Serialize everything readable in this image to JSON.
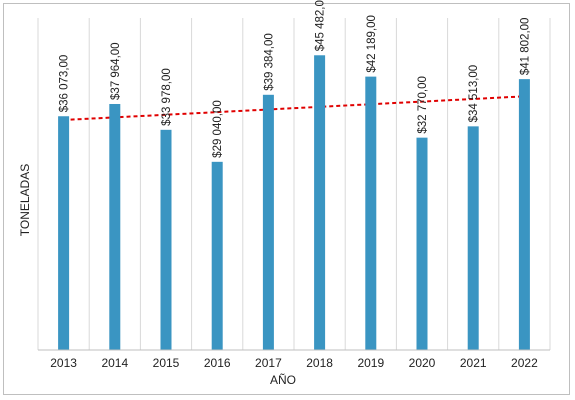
{
  "chart_data": {
    "type": "bar",
    "categories": [
      "2013",
      "2014",
      "2015",
      "2016",
      "2017",
      "2018",
      "2019",
      "2020",
      "2021",
      "2022"
    ],
    "values": [
      36073,
      37964,
      33978,
      29040,
      39384,
      45482,
      42189,
      32770,
      34513,
      41802
    ],
    "data_labels": [
      "$36 073,00",
      "$37 964,00",
      "$33 978,00",
      "$29 040,00",
      "$39 384,00",
      "$45 482,00",
      "$42 189,00",
      "$32 770,00",
      "$34 513,00",
      "$41 802,00"
    ],
    "title": "",
    "xlabel": "AÑO",
    "ylabel": "TONELADAS",
    "ylim": [
      0,
      50000
    ],
    "grid": "vertical",
    "legend": "none",
    "trendline": {
      "type": "linear",
      "style": "dashed",
      "color": "#e00000"
    },
    "colors": {
      "bar": "#3a95c2",
      "grid": "#d9d9d9",
      "trend": "#e00000"
    }
  }
}
